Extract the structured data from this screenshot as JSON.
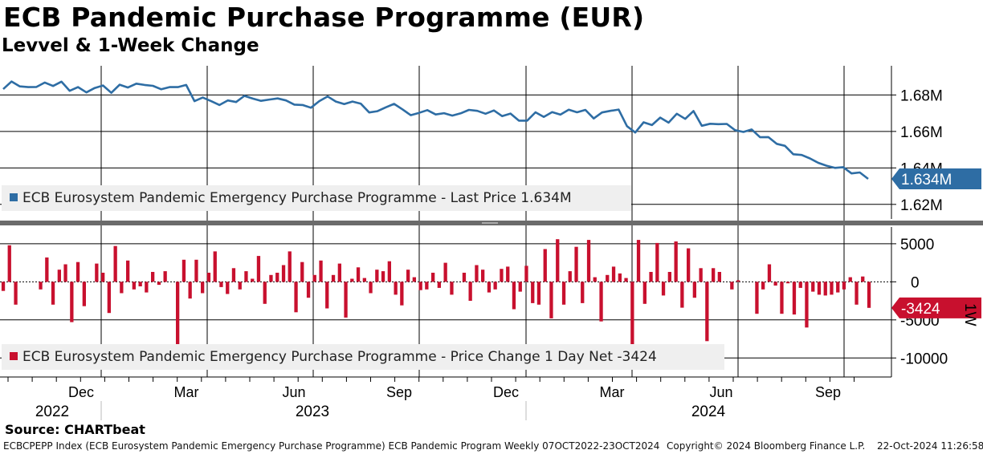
{
  "title": "ECB Pandemic Purchase Programme (EUR)",
  "subtitle": "Levvel & 1-Week Change",
  "source": "Source: CHARTbeat",
  "footer": {
    "left": "ECBCPEPP Index (ECB Eurosystem Pandemic Emergency Purchase Programme) ECB Pandemic Program  Weekly 07OCT2022-23OCT2024",
    "middle": "Copyright© 2024 Bloomberg Finance L.P.",
    "right": "22-Oct-2024 11:26:58"
  },
  "colors": {
    "level": "#2e6da4",
    "change": "#c8102e",
    "grid": "#000000"
  },
  "chart_data": [
    {
      "type": "line",
      "name": "level",
      "legend": "ECB Eurosystem Pandemic Emergency Purchase Programme - Last Price 1.634M",
      "last_label": "1.634M",
      "ylim": [
        1.612,
        1.696
      ],
      "yticks": [
        1.62,
        1.64,
        1.66,
        1.68
      ],
      "ytick_labels": [
        "1.62M",
        "1.64M",
        "1.66M",
        "1.68M"
      ],
      "values": [
        1.6832,
        1.6874,
        1.6847,
        1.6843,
        1.6844,
        1.6868,
        1.6849,
        1.6873,
        1.6823,
        1.6843,
        1.6814,
        1.6838,
        1.6852,
        1.6812,
        1.6856,
        1.6841,
        1.6862,
        1.6855,
        1.685,
        1.6831,
        1.6843,
        1.6843,
        1.6855,
        1.6766,
        1.6786,
        1.6766,
        1.6745,
        1.677,
        1.6761,
        1.6795,
        1.678,
        1.6768,
        1.6775,
        1.6781,
        1.677,
        1.6747,
        1.6745,
        1.673,
        1.6766,
        1.6792,
        1.6764,
        1.675,
        1.6764,
        1.6752,
        1.6704,
        1.6711,
        1.6732,
        1.6751,
        1.6721,
        1.6689,
        1.6702,
        1.6717,
        1.6693,
        1.67,
        1.6687,
        1.6699,
        1.6718,
        1.6713,
        1.6697,
        1.6715,
        1.6684,
        1.6698,
        1.6659,
        1.6659,
        1.6705,
        1.668,
        1.6706,
        1.6692,
        1.6719,
        1.6705,
        1.6718,
        1.6671,
        1.6704,
        1.6713,
        1.672,
        1.6629,
        1.6594,
        1.665,
        1.6635,
        1.6676,
        1.6648,
        1.6697,
        1.6669,
        1.6712,
        1.6631,
        1.6642,
        1.664,
        1.6641,
        1.6607,
        1.6597,
        1.6611,
        1.6568,
        1.6569,
        1.6532,
        1.6521,
        1.6475,
        1.6471,
        1.6452,
        1.6428,
        1.6412,
        1.64,
        1.6404,
        1.637,
        1.6375,
        1.634
      ]
    },
    {
      "type": "bar",
      "name": "change",
      "legend": "ECB Eurosystem Pandemic Emergency Purchase Programme - Price Change 1 Day Net -3424",
      "last_label": "-3424",
      "axis_tag": "1W",
      "ylim": [
        -12500,
        7200
      ],
      "yticks": [
        -10000,
        -5000,
        0,
        5000
      ],
      "ytick_labels": [
        "-10000",
        "-5000",
        "0",
        "5000"
      ],
      "values": [
        -1200,
        4800,
        -3000,
        0,
        0,
        0,
        -1000,
        3200,
        -3000,
        1600,
        2300,
        -5300,
        2600,
        -3200,
        0,
        2400,
        1200,
        -4100,
        4700,
        -1500,
        2800,
        -1000,
        -600,
        -1400,
        1300,
        -400,
        1400,
        0,
        -8900,
        2900,
        -2200,
        2900,
        -1500,
        1200,
        4000,
        -700,
        -1600,
        1800,
        -1000,
        1400,
        400,
        3400,
        -2900,
        900,
        1200,
        2200,
        4000,
        -4000,
        2600,
        -2100,
        900,
        2800,
        -3500,
        900,
        2400,
        -4700,
        400,
        1900,
        500,
        -1500,
        1600,
        1400,
        2700,
        -1700,
        -3100,
        1600,
        600,
        -1100,
        -1000,
        1200,
        -800,
        2500,
        -1700,
        0,
        1200,
        -2500,
        2200,
        1600,
        -1400,
        -1000,
        1700,
        2000,
        -3600,
        -1300,
        2100,
        -2800,
        -3000,
        4300,
        -4800,
        5600,
        -3000,
        1400,
        4600,
        -2800,
        5500,
        600,
        -5200,
        900,
        2000,
        1100,
        500,
        -8800,
        5500,
        -2900,
        1300,
        5100,
        -1800,
        1300,
        5300,
        -3400,
        4400,
        -2100,
        1800,
        -7800,
        1800,
        1300,
        0,
        -1000,
        200,
        0,
        0,
        -4200,
        -1000,
        2300,
        -500,
        -4200,
        -200,
        -4300,
        -800,
        -6000,
        -1300,
        -1700,
        -1800,
        -1700,
        -1400,
        -1000,
        600,
        -3000,
        700,
        -3424
      ]
    }
  ],
  "x_axis": {
    "months": [
      "Dec",
      "Mar",
      "Jun",
      "Sep",
      "Dec",
      "Mar",
      "Jun",
      "Sep"
    ],
    "years": [
      "2022",
      "2023",
      "2024"
    ]
  }
}
